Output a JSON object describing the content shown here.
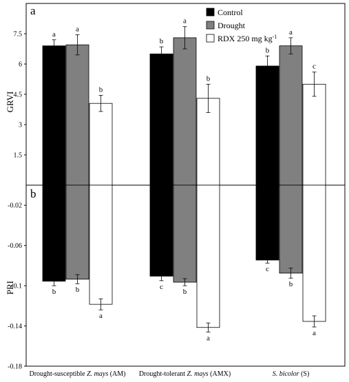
{
  "chart_data": [
    {
      "panel": "a",
      "type": "bar",
      "ylabel": "GRVI",
      "ylim": [
        0,
        9.0
      ],
      "yticks": [
        "1.5",
        "3",
        "4.5",
        "6",
        "7.5"
      ],
      "categories": [
        {
          "pre": "Drought-susceptible ",
          "italic": "Z. mays",
          "post": " (AM)"
        },
        {
          "pre": "Drought-tolerant ",
          "italic": "Z. mays",
          "post": " (AMX)"
        },
        {
          "pre": "",
          "italic": "S. bicolor",
          "post": " (S)"
        }
      ],
      "series": [
        {
          "name": "Control",
          "values": [
            6.9,
            6.5,
            5.9
          ],
          "errors": [
            0.3,
            0.35,
            0.5
          ],
          "letters": [
            "a",
            "b",
            "b"
          ]
        },
        {
          "name": "Drought",
          "values": [
            6.95,
            7.3,
            6.9
          ],
          "errors": [
            0.5,
            0.55,
            0.4
          ],
          "letters": [
            "a",
            "a",
            "a"
          ]
        },
        {
          "name": "RDX 250 mg kg",
          "values": [
            4.05,
            4.3,
            5.0
          ],
          "errors": [
            0.4,
            0.7,
            0.6
          ],
          "letters": [
            "b",
            "b",
            "c"
          ]
        }
      ],
      "legend": {
        "position": "top-right",
        "items": [
          {
            "label": "Control",
            "sup": ""
          },
          {
            "label": "Drought",
            "sup": ""
          },
          {
            "label": "RDX 250 mg kg",
            "sup": "-1"
          }
        ]
      }
    },
    {
      "panel": "b",
      "type": "bar",
      "ylabel": "PRI",
      "ylim": [
        -0.18,
        0
      ],
      "yticks": [
        "-0.02",
        "-0.06",
        "-0.1",
        "-0.14",
        "-0.18"
      ],
      "series": [
        {
          "name": "Control",
          "values": [
            -0.0955,
            -0.0905,
            -0.0745
          ],
          "errors": [
            0.0045,
            0.0045,
            0.003
          ],
          "letters": [
            "b",
            "c",
            "c"
          ]
        },
        {
          "name": "Drought",
          "values": [
            -0.0935,
            -0.0965,
            -0.0875
          ],
          "errors": [
            0.0045,
            0.0035,
            0.005
          ],
          "letters": [
            "b",
            "b",
            "b"
          ]
        },
        {
          "name": "RDX 250 mg kg",
          "values": [
            -0.1185,
            -0.1415,
            -0.1355
          ],
          "errors": [
            0.0055,
            0.0045,
            0.0055
          ],
          "letters": [
            "a",
            "a",
            "a"
          ]
        }
      ]
    }
  ],
  "colors": {
    "control": "#000000",
    "drought": "#808080",
    "rdx": "#ffffff"
  }
}
